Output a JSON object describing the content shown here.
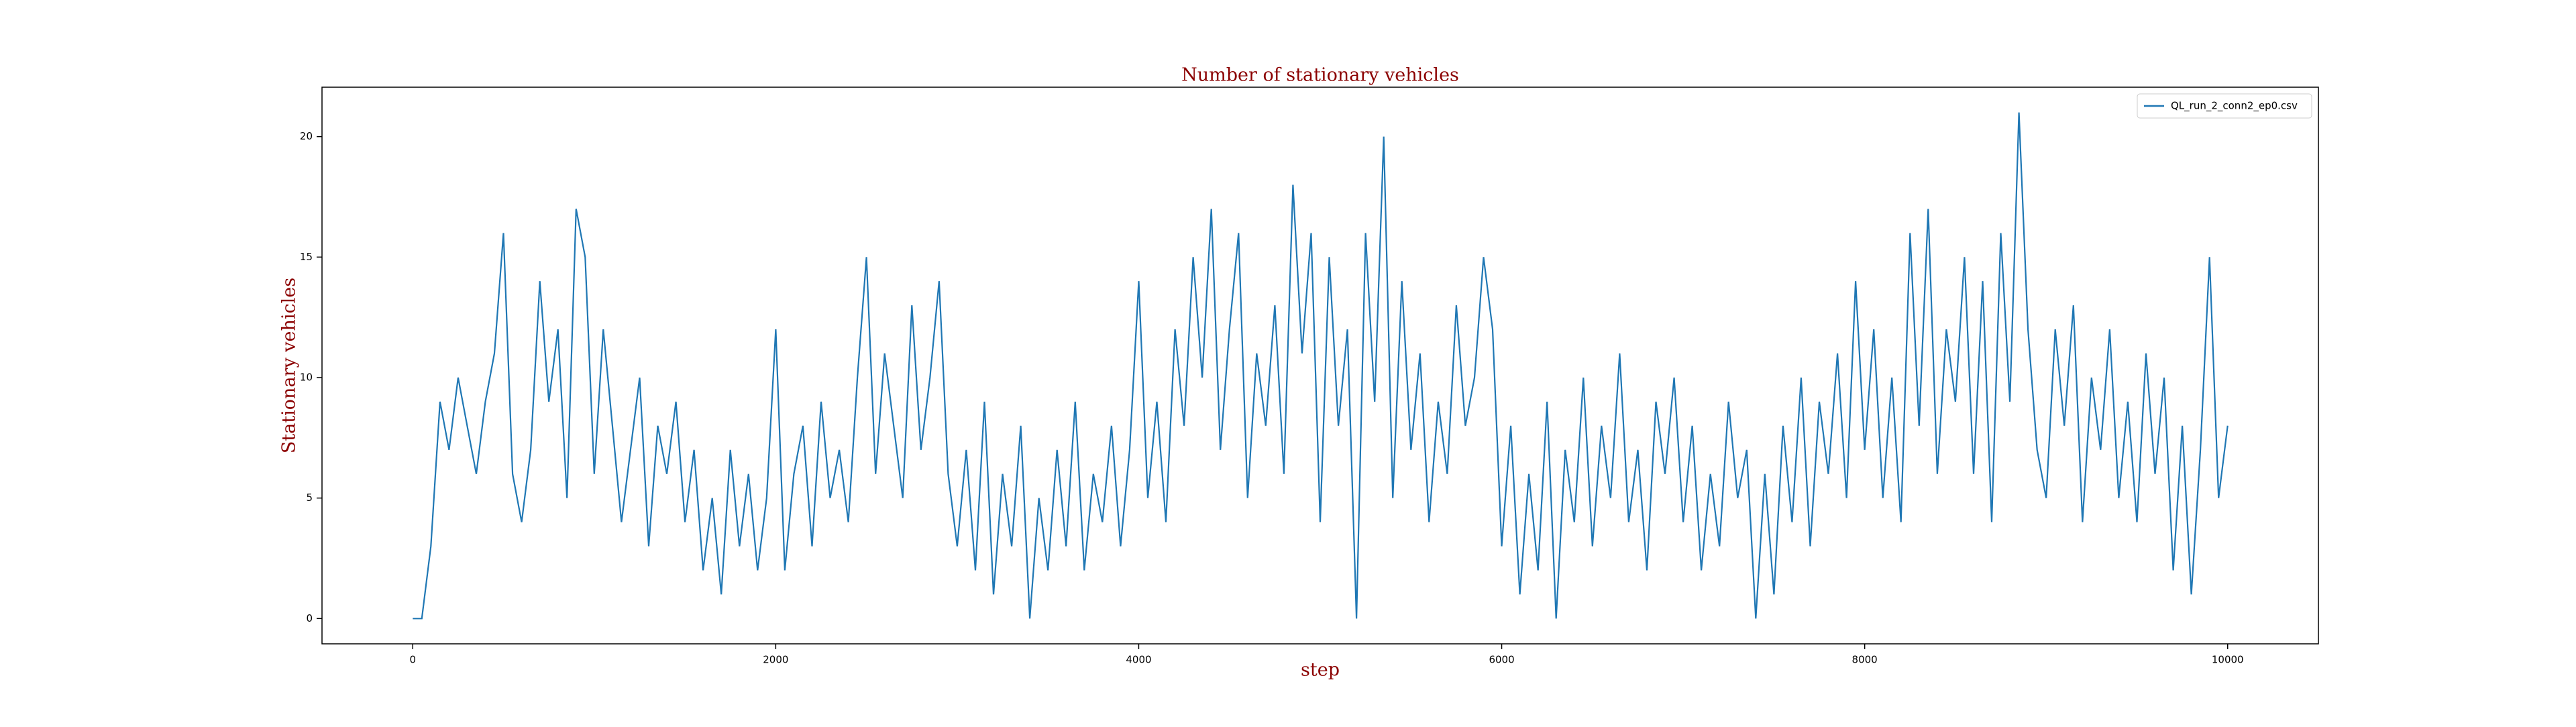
{
  "chart_data": {
    "type": "line",
    "title": "Number of stationary vehicles",
    "x_label": "step",
    "y_label": "Stationary vehicles",
    "xlim": [
      -500,
      10500
    ],
    "ylim": [
      -1.05,
      22.05
    ],
    "xticks": [
      0,
      2000,
      4000,
      6000,
      8000,
      10000
    ],
    "yticks": [
      0,
      5,
      10,
      15,
      20
    ],
    "legend": "upper right",
    "x": [
      0,
      50,
      100,
      150,
      200,
      250,
      300,
      350,
      400,
      450,
      500,
      550,
      600,
      650,
      700,
      750,
      800,
      850,
      900,
      950,
      1000,
      1050,
      1100,
      1150,
      1200,
      1250,
      1300,
      1350,
      1400,
      1450,
      1500,
      1550,
      1600,
      1650,
      1700,
      1750,
      1800,
      1850,
      1900,
      1950,
      2000,
      2050,
      2100,
      2150,
      2200,
      2250,
      2300,
      2350,
      2400,
      2450,
      2500,
      2550,
      2600,
      2650,
      2700,
      2750,
      2800,
      2850,
      2900,
      2950,
      3000,
      3050,
      3100,
      3150,
      3200,
      3250,
      3300,
      3350,
      3400,
      3450,
      3500,
      3550,
      3600,
      3650,
      3700,
      3750,
      3800,
      3850,
      3900,
      3950,
      4000,
      4050,
      4100,
      4150,
      4200,
      4250,
      4300,
      4350,
      4400,
      4450,
      4500,
      4550,
      4600,
      4650,
      4700,
      4750,
      4800,
      4850,
      4900,
      4950,
      5000,
      5050,
      5100,
      5150,
      5200,
      5250,
      5300,
      5350,
      5400,
      5450,
      5500,
      5550,
      5600,
      5650,
      5700,
      5750,
      5800,
      5850,
      5900,
      5950,
      6000,
      6050,
      6100,
      6150,
      6200,
      6250,
      6300,
      6350,
      6400,
      6450,
      6500,
      6550,
      6600,
      6650,
      6700,
      6750,
      6800,
      6850,
      6900,
      6950,
      7000,
      7050,
      7100,
      7150,
      7200,
      7250,
      7300,
      7350,
      7400,
      7450,
      7500,
      7550,
      7600,
      7650,
      7700,
      7750,
      7800,
      7850,
      7900,
      7950,
      8000,
      8050,
      8100,
      8150,
      8200,
      8250,
      8300,
      8350,
      8400,
      8450,
      8500,
      8550,
      8600,
      8650,
      8700,
      8750,
      8800,
      8850,
      8900,
      8950,
      9000,
      9050,
      9100,
      9150,
      9200,
      9250,
      9300,
      9350,
      9400,
      9450,
      9500,
      9550,
      9600,
      9650,
      9700,
      9750,
      9800,
      9850,
      9900,
      9950,
      10000
    ],
    "series": [
      {
        "name": "QL_run_2_conn2_ep0.csv",
        "color": "#1f77b4",
        "values": [
          0,
          0,
          3,
          9,
          7,
          10,
          8,
          6,
          9,
          11,
          16,
          6,
          4,
          7,
          14,
          9,
          12,
          5,
          17,
          15,
          6,
          12,
          8,
          4,
          7,
          10,
          3,
          8,
          6,
          9,
          4,
          7,
          2,
          5,
          1,
          7,
          3,
          6,
          2,
          5,
          12,
          2,
          6,
          8,
          3,
          9,
          5,
          7,
          4,
          10,
          15,
          6,
          11,
          8,
          5,
          13,
          7,
          10,
          14,
          6,
          3,
          7,
          2,
          9,
          1,
          6,
          3,
          8,
          0,
          5,
          2,
          7,
          3,
          9,
          2,
          6,
          4,
          8,
          3,
          7,
          14,
          5,
          9,
          4,
          12,
          8,
          15,
          10,
          17,
          7,
          12,
          16,
          5,
          11,
          8,
          13,
          6,
          18,
          11,
          16,
          4,
          15,
          8,
          12,
          0,
          16,
          9,
          20,
          5,
          14,
          7,
          11,
          4,
          9,
          6,
          13,
          8,
          10,
          15,
          12,
          3,
          8,
          1,
          6,
          2,
          9,
          0,
          7,
          4,
          10,
          3,
          8,
          5,
          11,
          4,
          7,
          2,
          9,
          6,
          10,
          4,
          8,
          2,
          6,
          3,
          9,
          5,
          7,
          0,
          6,
          1,
          8,
          4,
          10,
          3,
          9,
          6,
          11,
          5,
          14,
          7,
          12,
          5,
          10,
          4,
          16,
          8,
          17,
          6,
          12,
          9,
          15,
          6,
          14,
          4,
          16,
          9,
          21,
          12,
          7,
          5,
          12,
          8,
          13,
          4,
          10,
          7,
          12,
          5,
          9,
          4,
          11,
          6,
          10,
          2,
          8,
          1,
          7,
          15,
          5,
          8
        ]
      }
    ]
  }
}
